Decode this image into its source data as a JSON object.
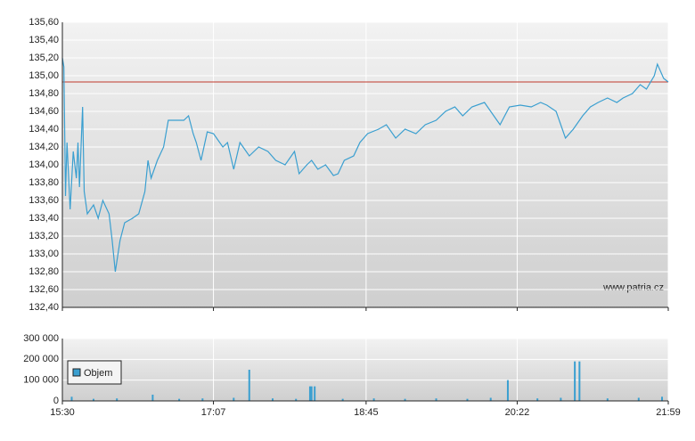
{
  "chart_data": [
    {
      "type": "line",
      "watermark": "www.patria.cz",
      "color": "#3a9fd0",
      "reference_color": "#c0392b",
      "grid": true,
      "reference_line": 134.93,
      "xlim": [
        "15:30",
        "21:59"
      ],
      "ylim": [
        132.4,
        135.6
      ],
      "yticks": [
        {
          "value": 132.4,
          "label": "132,40"
        },
        {
          "value": 132.6,
          "label": "132,60"
        },
        {
          "value": 132.8,
          "label": "132,80"
        },
        {
          "value": 133.0,
          "label": "133,00"
        },
        {
          "value": 133.2,
          "label": "133,20"
        },
        {
          "value": 133.4,
          "label": "133,40"
        },
        {
          "value": 133.6,
          "label": "133,60"
        },
        {
          "value": 133.8,
          "label": "133,80"
        },
        {
          "value": 134.0,
          "label": "134,00"
        },
        {
          "value": 134.2,
          "label": "134,20"
        },
        {
          "value": 134.4,
          "label": "134,40"
        },
        {
          "value": 134.6,
          "label": "134,60"
        },
        {
          "value": 134.8,
          "label": "134,80"
        },
        {
          "value": 135.0,
          "label": "135,00"
        },
        {
          "value": 135.2,
          "label": "135,20"
        },
        {
          "value": 135.4,
          "label": "135,40"
        },
        {
          "value": 135.6,
          "label": "135,60"
        }
      ],
      "x": [
        "15:30",
        "15:31",
        "15:32",
        "15:33",
        "15:35",
        "15:37",
        "15:39",
        "15:40",
        "15:41",
        "15:43",
        "15:44",
        "15:46",
        "15:50",
        "15:53",
        "15:56",
        "16:00",
        "16:02",
        "16:04",
        "16:07",
        "16:10",
        "16:15",
        "16:19",
        "16:23",
        "16:25",
        "16:27",
        "16:31",
        "16:35",
        "16:38",
        "16:42",
        "16:48",
        "16:51",
        "16:54",
        "16:56",
        "16:59",
        "17:03",
        "17:07",
        "17:13",
        "17:16",
        "17:20",
        "17:24",
        "17:30",
        "17:36",
        "17:42",
        "17:47",
        "17:53",
        "17:59",
        "18:02",
        "18:07",
        "18:10",
        "18:14",
        "18:19",
        "18:24",
        "18:27",
        "18:31",
        "18:37",
        "18:41",
        "18:46",
        "18:53",
        "18:58",
        "19:04",
        "19:10",
        "19:17",
        "19:23",
        "19:30",
        "19:36",
        "19:42",
        "19:47",
        "19:53",
        "20:01",
        "20:07",
        "20:11",
        "20:17",
        "20:24",
        "20:31",
        "20:37",
        "20:41",
        "20:47",
        "20:53",
        "20:58",
        "21:04",
        "21:09",
        "21:14",
        "21:20",
        "21:26",
        "21:30",
        "21:36",
        "21:41",
        "21:45",
        "21:50",
        "21:52",
        "21:56",
        "21:59"
      ],
      "values": [
        135.2,
        135.1,
        133.65,
        134.25,
        133.5,
        134.15,
        133.85,
        134.25,
        133.75,
        134.65,
        133.7,
        133.45,
        133.55,
        133.4,
        133.6,
        133.45,
        133.15,
        132.8,
        133.15,
        133.35,
        133.4,
        133.45,
        133.7,
        134.05,
        133.85,
        134.05,
        134.2,
        134.5,
        134.5,
        134.5,
        134.55,
        134.35,
        134.25,
        134.05,
        134.37,
        134.35,
        134.2,
        134.25,
        133.95,
        134.25,
        134.1,
        134.2,
        134.15,
        134.05,
        134.0,
        134.15,
        133.9,
        134.0,
        134.05,
        133.95,
        134.0,
        133.88,
        133.9,
        134.05,
        134.1,
        134.25,
        134.35,
        134.4,
        134.45,
        134.3,
        134.4,
        134.35,
        134.45,
        134.5,
        134.6,
        134.65,
        134.55,
        134.65,
        134.7,
        134.55,
        134.45,
        134.65,
        134.67,
        134.65,
        134.7,
        134.67,
        134.6,
        134.3,
        134.4,
        134.55,
        134.65,
        134.7,
        134.75,
        134.7,
        134.75,
        134.8,
        134.9,
        134.85,
        135.0,
        135.13,
        134.97,
        134.93
      ]
    },
    {
      "type": "bar",
      "grid": true,
      "legend": "lower-left",
      "xlim": [
        "15:30",
        "21:59"
      ],
      "xticks": [
        "15:30",
        "17:07",
        "18:45",
        "20:22",
        "21:59"
      ],
      "ylim": [
        0,
        300000
      ],
      "yticks": [
        0,
        {
          "value": 100000,
          "label": "100 000"
        },
        {
          "value": 200000,
          "label": "200 000"
        },
        {
          "value": 300000,
          "label": "300 000"
        }
      ],
      "series": [
        {
          "name": "Objem",
          "color": "#3a9fd0",
          "x": [
            "15:36",
            "15:50",
            "16:05",
            "16:28",
            "16:45",
            "17:00",
            "17:20",
            "17:30",
            "17:45",
            "18:00",
            "18:09",
            "18:10",
            "18:12",
            "18:30",
            "18:50",
            "19:10",
            "19:30",
            "19:50",
            "20:05",
            "20:16",
            "20:35",
            "20:50",
            "20:59",
            "21:02",
            "21:20",
            "21:40",
            "21:55"
          ],
          "values": [
            20000,
            10000,
            12000,
            30000,
            10000,
            12000,
            15000,
            150000,
            12000,
            10000,
            70000,
            70000,
            70000,
            10000,
            12000,
            10000,
            12000,
            10000,
            15000,
            100000,
            12000,
            15000,
            190000,
            190000,
            12000,
            15000,
            20000
          ]
        }
      ]
    }
  ]
}
